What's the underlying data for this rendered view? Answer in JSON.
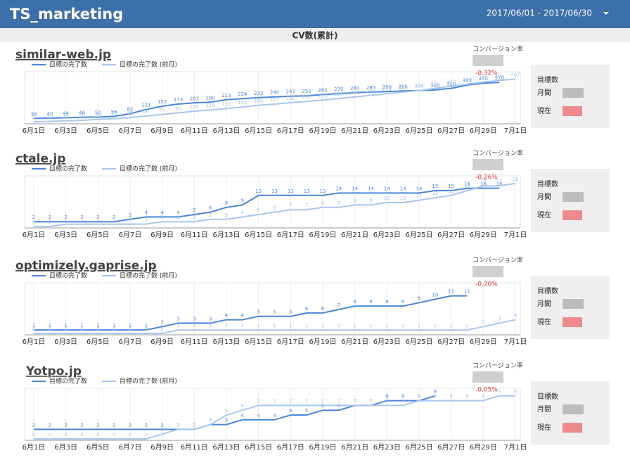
{
  "header": {
    "title": "TS_marketing",
    "date_range": "2017/06/01 - 2017/06/30"
  },
  "section_title": "CV数(累計)",
  "panels": [
    {
      "conversion_label": "コンバージョン率",
      "change": "-0.32%",
      "goal_title": "目標数",
      "monthly": "月間",
      "current": "現在"
    },
    {
      "conversion_label": "コンバージョン率",
      "change": "-0.26%",
      "goal_title": "目標数",
      "monthly": "月間",
      "current": "現在"
    },
    {
      "conversion_label": "コンバージョン率",
      "change": "-0.20%",
      "goal_title": "目標数",
      "monthly": "月間",
      "current": "現在"
    },
    {
      "conversion_label": "コンバージョン率",
      "change": "-0.05%",
      "goal_title": "目標数",
      "monthly": "月間",
      "current": "現在"
    }
  ],
  "chart_data": [
    {
      "type": "line",
      "title": "similar-web.jp",
      "categories": [
        "6月1日",
        null,
        "6月3日",
        null,
        "6月5日",
        null,
        "6月7日",
        null,
        "6月9日",
        null,
        "6月11日",
        null,
        "6月13日",
        null,
        "6月15日",
        null,
        "6月17日",
        null,
        "6月19日",
        null,
        "6月21日",
        null,
        "6月23日",
        null,
        "6月25日",
        null,
        "6月27日",
        null,
        "6月29日",
        null,
        "7月1日"
      ],
      "series": [
        {
          "name": "目標の完了数",
          "color": "#4a86d8",
          "values": [
            38,
            40,
            44,
            48,
            50,
            56,
            82,
            121,
            152,
            173,
            183,
            190,
            213,
            224,
            233,
            240,
            247,
            250,
            262,
            270,
            280,
            285,
            290,
            296,
            300,
            305,
            320,
            351,
            370,
            376,
            null
          ]
        },
        {
          "name": "目標の完了数 (前月)",
          "color": "#a9c7ee",
          "values": [
            5,
            10,
            15,
            20,
            28,
            35,
            45,
            60,
            75,
            90,
            105,
            118,
            130,
            145,
            160,
            172,
            185,
            198,
            210,
            225,
            240,
            255,
            270,
            285,
            300,
            320,
            340,
            360,
            380,
            395,
            407
          ]
        }
      ],
      "ylim": [
        0,
        450
      ],
      "legend": "top-left"
    },
    {
      "type": "line",
      "title": "ctale.jp",
      "categories": [
        "6月1日",
        null,
        "6月3日",
        null,
        "6月5日",
        null,
        "6月7日",
        null,
        "6月9日",
        null,
        "6月11日",
        null,
        "6月13日",
        null,
        "6月15日",
        null,
        "6月17日",
        null,
        "6月19日",
        null,
        "6月21日",
        null,
        "6月23日",
        null,
        "6月25日",
        null,
        "6月27日",
        null,
        "6月29日",
        null,
        "7月1日"
      ],
      "series": [
        {
          "name": "目標の完了数",
          "color": "#4a86d8",
          "values": [
            2,
            2,
            2,
            2,
            2,
            2,
            3,
            4,
            4,
            4,
            5,
            6,
            8,
            9,
            13,
            13,
            13,
            13,
            13,
            14,
            14,
            14,
            14,
            14,
            14,
            15,
            15,
            16,
            16,
            16,
            null
          ]
        },
        {
          "name": "目標の完了数 (前月)",
          "color": "#a9c7ee",
          "values": [
            0,
            0,
            1,
            1,
            1,
            1,
            1,
            1,
            2,
            2,
            2,
            3,
            3,
            4,
            5,
            6,
            7,
            7,
            8,
            8,
            9,
            9,
            10,
            10,
            11,
            12,
            13,
            15,
            17,
            17,
            18
          ]
        }
      ],
      "ylim": [
        0,
        20
      ],
      "legend": "top-left"
    },
    {
      "type": "line",
      "title": "optimizely.gaprise.jp",
      "categories": [
        "6月1日",
        null,
        "6月3日",
        null,
        "6月5日",
        null,
        "6月7日",
        null,
        "6月9日",
        null,
        "6月11日",
        null,
        "6月13日",
        null,
        "6月15日",
        null,
        "6月17日",
        null,
        "6月19日",
        null,
        "6月21日",
        null,
        "6月23日",
        null,
        "6月25日",
        null,
        "6月27日",
        null,
        "6月29日",
        null,
        "7月1日"
      ],
      "series": [
        {
          "name": "目標の完了数",
          "color": "#4a86d8",
          "values": [
            1,
            1,
            1,
            1,
            1,
            1,
            1,
            1,
            2,
            3,
            3,
            3,
            4,
            4,
            5,
            5,
            5,
            6,
            6,
            7,
            8,
            8,
            8,
            8,
            9,
            10,
            11,
            11,
            null,
            null,
            null
          ]
        },
        {
          "name": "目標の完了数 (前月)",
          "color": "#a9c7ee",
          "values": [
            0,
            0,
            0,
            0,
            0,
            0,
            0,
            0,
            0,
            1,
            1,
            1,
            1,
            1,
            1,
            1,
            1,
            1,
            1,
            1,
            1,
            1,
            1,
            1,
            1,
            1,
            1,
            1,
            2,
            3,
            4
          ]
        }
      ],
      "ylim": [
        0,
        14
      ],
      "legend": "top-left"
    },
    {
      "type": "line",
      "title": "Yotpo.jp",
      "categories": [
        "6月1日",
        null,
        "6月3日",
        null,
        "6月5日",
        null,
        "6月7日",
        null,
        "6月9日",
        null,
        "6月11日",
        null,
        "6月13日",
        null,
        "6月15日",
        null,
        "6月17日",
        null,
        "6月19日",
        null,
        "6月21日",
        null,
        "6月23日",
        null,
        "6月25日",
        null,
        "6月27日",
        null,
        "6月29日",
        null,
        "7月1日"
      ],
      "series": [
        {
          "name": "目標の完了数",
          "color": "#4a86d8",
          "values": [
            2,
            2,
            2,
            2,
            2,
            2,
            2,
            2,
            2,
            2,
            2,
            3,
            3,
            4,
            4,
            4,
            5,
            5,
            6,
            6,
            7,
            7,
            8,
            8,
            8,
            9,
            null,
            null,
            null,
            null,
            null
          ]
        },
        {
          "name": "目標の完了数 (前月)",
          "color": "#a9c7ee",
          "values": [
            0,
            0,
            0,
            0,
            0,
            0,
            0,
            0,
            1,
            2,
            2,
            3,
            5,
            6,
            7,
            7,
            7,
            7,
            7,
            7,
            7,
            7,
            7,
            7,
            8,
            8,
            8,
            8,
            8,
            9,
            9
          ]
        }
      ],
      "ylim": [
        0,
        10
      ],
      "legend": "top-left"
    }
  ]
}
